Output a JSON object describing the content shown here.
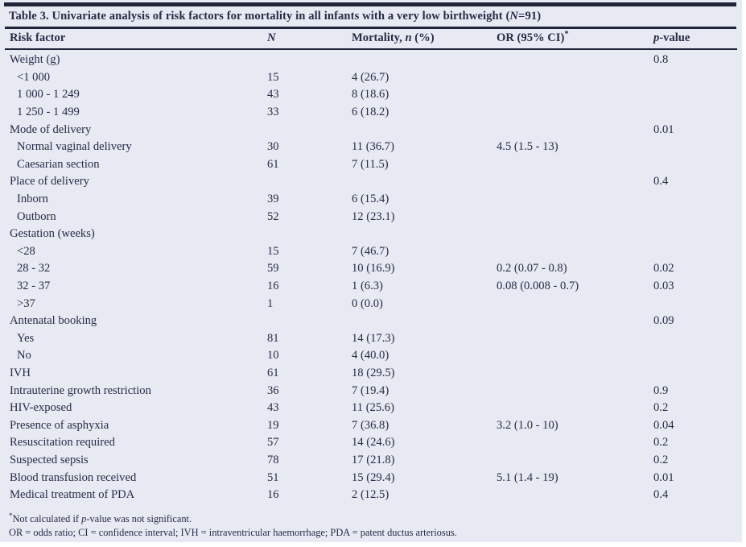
{
  "colors": {
    "panel_bg": "#e7e9f3",
    "text": "#272c45",
    "rule": "#1e2338"
  },
  "title": {
    "segments": [
      {
        "t": "Table 3. Univariate analysis of risk factors for mortality in all infants with a very low birthweight (",
        "i": false
      },
      {
        "t": "N",
        "i": true
      },
      {
        "t": "=91)",
        "i": false
      }
    ]
  },
  "table": {
    "columns": [
      {
        "name": "risk-factor",
        "segments": [
          {
            "t": "Risk factor",
            "i": false
          }
        ]
      },
      {
        "name": "n",
        "segments": [
          {
            "t": "N",
            "i": true
          }
        ]
      },
      {
        "name": "mortality",
        "segments": [
          {
            "t": "Mortality, ",
            "i": false
          },
          {
            "t": "n",
            "i": true
          },
          {
            "t": " (%)",
            "i": false
          }
        ]
      },
      {
        "name": "or-95-ci",
        "segments": [
          {
            "t": "OR (95% CI)",
            "i": false
          },
          {
            "t": "*",
            "i": false,
            "sup": true
          }
        ]
      },
      {
        "name": "p-value",
        "segments": [
          {
            "t": "p",
            "i": true
          },
          {
            "t": "-value",
            "i": false
          }
        ]
      }
    ],
    "rows": [
      {
        "label": "Weight (g)",
        "indent": false,
        "n": "",
        "mortality": "",
        "or": "",
        "p": "0.8"
      },
      {
        "label": "<1 000",
        "indent": true,
        "n": "15",
        "mortality": "4 (26.7)",
        "or": "",
        "p": ""
      },
      {
        "label": "1 000 - 1 249",
        "indent": true,
        "n": "43",
        "mortality": "8 (18.6)",
        "or": "",
        "p": ""
      },
      {
        "label": "1 250 - 1 499",
        "indent": true,
        "n": "33",
        "mortality": "6 (18.2)",
        "or": "",
        "p": ""
      },
      {
        "label": "Mode of delivery",
        "indent": false,
        "n": "",
        "mortality": "",
        "or": "",
        "p": "0.01"
      },
      {
        "label": "Normal vaginal delivery",
        "indent": true,
        "n": "30",
        "mortality": "11 (36.7)",
        "or": "4.5 (1.5 - 13)",
        "p": ""
      },
      {
        "label": "Caesarian section",
        "indent": true,
        "n": "61",
        "mortality": "7 (11.5)",
        "or": "",
        "p": ""
      },
      {
        "label": "Place of delivery",
        "indent": false,
        "n": "",
        "mortality": "",
        "or": "",
        "p": "0.4"
      },
      {
        "label": "Inborn",
        "indent": true,
        "n": "39",
        "mortality": "6 (15.4)",
        "or": "",
        "p": ""
      },
      {
        "label": "Outborn",
        "indent": true,
        "n": "52",
        "mortality": "12 (23.1)",
        "or": "",
        "p": ""
      },
      {
        "label": "Gestation (weeks)",
        "indent": false,
        "n": "",
        "mortality": "",
        "or": "",
        "p": ""
      },
      {
        "label": "<28",
        "indent": true,
        "n": "15",
        "mortality": "7 (46.7)",
        "or": "",
        "p": ""
      },
      {
        "label": "28 - 32",
        "indent": true,
        "n": "59",
        "mortality": "10 (16.9)",
        "or": "0.2 (0.07 - 0.8)",
        "p": "0.02"
      },
      {
        "label": "32 - 37",
        "indent": true,
        "n": "16",
        "mortality": "1 (6.3)",
        "or": "0.08 (0.008 - 0.7)",
        "p": "0.03"
      },
      {
        "label": ">37",
        "indent": true,
        "n": "1",
        "mortality": "0 (0.0)",
        "or": "",
        "p": ""
      },
      {
        "label": "Antenatal booking",
        "indent": false,
        "n": "",
        "mortality": "",
        "or": "",
        "p": "0.09"
      },
      {
        "label": "Yes",
        "indent": true,
        "n": "81",
        "mortality": "14 (17.3)",
        "or": "",
        "p": ""
      },
      {
        "label": "No",
        "indent": true,
        "n": "10",
        "mortality": "4 (40.0)",
        "or": "",
        "p": ""
      },
      {
        "label": "IVH",
        "indent": false,
        "n": "61",
        "mortality": "18 (29.5)",
        "or": "",
        "p": ""
      },
      {
        "label": "Intrauterine growth restriction",
        "indent": false,
        "n": "36",
        "mortality": "7 (19.4)",
        "or": "",
        "p": "0.9"
      },
      {
        "label": "HIV-exposed",
        "indent": false,
        "n": "43",
        "mortality": "11 (25.6)",
        "or": "",
        "p": "0.2"
      },
      {
        "label": "Presence of asphyxia",
        "indent": false,
        "n": "19",
        "mortality": "7 (36.8)",
        "or": "3.2 (1.0 - 10)",
        "p": "0.04"
      },
      {
        "label": "Resuscitation required",
        "indent": false,
        "n": "57",
        "mortality": "14 (24.6)",
        "or": "",
        "p": "0.2"
      },
      {
        "label": "Suspected sepsis",
        "indent": false,
        "n": "78",
        "mortality": "17 (21.8)",
        "or": "",
        "p": "0.2"
      },
      {
        "label": "Blood transfusion received",
        "indent": false,
        "n": "51",
        "mortality": "15 (29.4)",
        "or": "5.1 (1.4 - 19)",
        "p": "0.01"
      },
      {
        "label": "Medical treatment of PDA",
        "indent": false,
        "n": "16",
        "mortality": "2 (12.5)",
        "or": "",
        "p": "0.4"
      }
    ]
  },
  "footnotes": [
    {
      "segments": [
        {
          "t": "*",
          "i": false,
          "sup": true
        },
        {
          "t": "Not calculated if ",
          "i": false
        },
        {
          "t": "p",
          "i": true
        },
        {
          "t": "-value was not significant.",
          "i": false
        }
      ]
    },
    {
      "segments": [
        {
          "t": "OR = odds ratio; CI = confidence interval; IVH = intraventricular haemorrhage; PDA = patent ductus arteriosus.",
          "i": false
        }
      ]
    }
  ]
}
